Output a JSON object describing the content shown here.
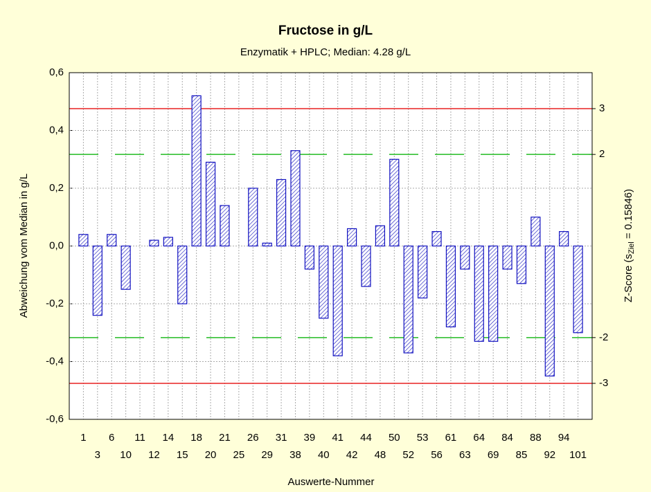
{
  "chart_data": {
    "type": "bar",
    "title": "Fructose in g/L",
    "subtitle": "Enzymatik + HPLC; Median: 4.28 g/L",
    "x_label": "Auswerte-Nummer",
    "y_label": "Abweichung vom Median in g/L",
    "y2_label": {
      "prefix": "Z-Score (s",
      "sub": "Ziel",
      "suffix": " = 0.15846)"
    },
    "categories": [
      "1",
      "3",
      "6",
      "10",
      "11",
      "12",
      "14",
      "15",
      "18",
      "20",
      "21",
      "25",
      "26",
      "29",
      "31",
      "38",
      "39",
      "40",
      "41",
      "42",
      "44",
      "48",
      "50",
      "52",
      "53",
      "56",
      "61",
      "63",
      "64",
      "69",
      "84",
      "85",
      "88",
      "92",
      "94",
      "101"
    ],
    "values": [
      0.04,
      -0.24,
      0.04,
      -0.15,
      0.0,
      0.02,
      0.03,
      -0.2,
      0.52,
      0.29,
      0.14,
      0.0,
      0.2,
      0.01,
      0.23,
      0.33,
      -0.08,
      -0.25,
      -0.38,
      0.06,
      -0.14,
      0.07,
      0.3,
      -0.37,
      -0.18,
      0.05,
      -0.28,
      -0.08,
      -0.33,
      -0.33,
      -0.08,
      -0.13,
      0.1,
      -0.45,
      0.05,
      -0.3
    ],
    "color": "#1010c0",
    "ylim": [
      -0.6,
      0.6
    ],
    "yticks": [
      {
        "value": -0.6,
        "label": "-0,6"
      },
      {
        "value": -0.4,
        "label": "-0,4"
      },
      {
        "value": -0.2,
        "label": "-0,2"
      },
      {
        "value": 0,
        "label": "0,0"
      },
      {
        "value": 0.2,
        "label": "0,2"
      },
      {
        "value": 0.4,
        "label": "0,4"
      },
      {
        "value": 0.6,
        "label": "0,6"
      }
    ],
    "y2lim": [
      -3.786,
      3.786
    ],
    "y2ticks": [
      -3,
      -2,
      2,
      3
    ],
    "reference_lines": [
      {
        "axis": "y2",
        "value": 3,
        "color": "#e82020",
        "style": "solid"
      },
      {
        "axis": "y2",
        "value": -3,
        "color": "#e82020",
        "style": "solid"
      },
      {
        "axis": "y2",
        "value": 2,
        "color": "#22bb22",
        "style": "dashed"
      },
      {
        "axis": "y2",
        "value": -2,
        "color": "#22bb22",
        "style": "dashed"
      }
    ],
    "grid": true
  }
}
